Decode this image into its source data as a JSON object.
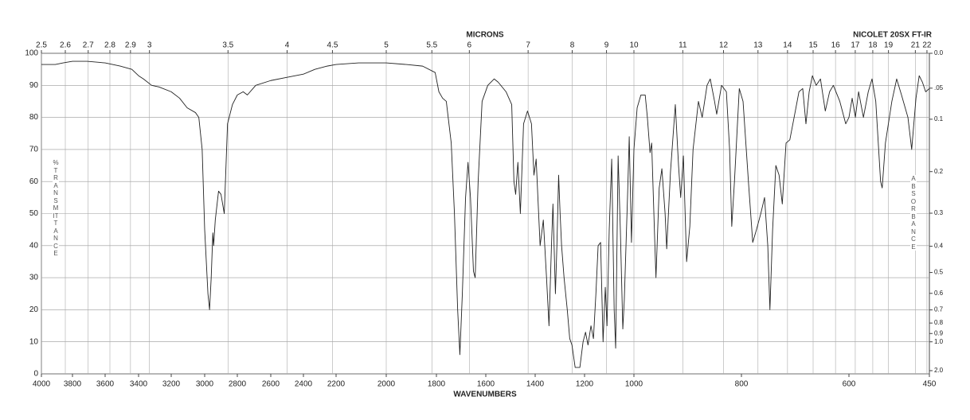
{
  "chart_data": {
    "type": "line",
    "annotation": "NICOLET 20SX FT-IR",
    "x_label": "WAVENUMBERS",
    "x2_label": "MICRONS",
    "y_label": "%TRANSMITTANCE",
    "y2_label": "ABSORBANCE",
    "color": "#222222",
    "grid": true,
    "xlim": [
      4000,
      450
    ],
    "xticks": [
      4000,
      3800,
      3600,
      3400,
      3200,
      3000,
      2800,
      2600,
      2400,
      2200,
      2000,
      1800,
      1600,
      1400,
      1200,
      1000,
      800,
      600,
      450
    ],
    "x2ticks": [
      2.5,
      2.6,
      2.7,
      2.8,
      2.9,
      3,
      3.5,
      4,
      4.5,
      5,
      5.5,
      6,
      7,
      8,
      9,
      10,
      11,
      12,
      13,
      14,
      15,
      16,
      17,
      18,
      19,
      21,
      22
    ],
    "ylim": [
      0,
      100
    ],
    "yticks": [
      0,
      10,
      20,
      30,
      40,
      50,
      60,
      70,
      80,
      90,
      100
    ],
    "y2ticks": [
      {
        "value": 0,
        "label": "0.0"
      },
      {
        "value": 0.05,
        "label": ".05"
      },
      0.1,
      0.2,
      0.3,
      0.4,
      0.5,
      0.6,
      0.7,
      0.8,
      0.9,
      {
        "value": 1,
        "label": "1.0"
      },
      {
        "value": 2,
        "label": "2.0"
      }
    ],
    "x": [
      4000,
      3910,
      3860,
      3800,
      3710,
      3600,
      3510,
      3440,
      3400,
      3370,
      3320,
      3275,
      3200,
      3150,
      3105,
      3055,
      3035,
      3015,
      3000,
      2980,
      2970,
      2960,
      2950,
      2945,
      2935,
      2915,
      2900,
      2880,
      2860,
      2830,
      2800,
      2765,
      2740,
      2690,
      2600,
      2500,
      2450,
      2400,
      2330,
      2255,
      2200,
      2110,
      2000,
      1920,
      1855,
      1805,
      1790,
      1775,
      1760,
      1740,
      1727,
      1714,
      1705,
      1695,
      1682,
      1672,
      1662,
      1650,
      1643,
      1631,
      1615,
      1592,
      1566,
      1550,
      1518,
      1495,
      1486,
      1479,
      1470,
      1460,
      1447,
      1431,
      1415,
      1405,
      1396,
      1386,
      1380,
      1367,
      1354,
      1344,
      1334,
      1328,
      1318,
      1312,
      1305,
      1299,
      1293,
      1283,
      1270,
      1260,
      1251,
      1238,
      1219,
      1206,
      1196,
      1186,
      1174,
      1164,
      1154,
      1145,
      1135,
      1125,
      1116,
      1109,
      1100,
      1090,
      1080,
      1074,
      1064,
      1055,
      1045,
      1039,
      1026,
      1019,
      1010,
      1000,
      994,
      987,
      979,
      975,
      970,
      967,
      961,
      959,
      953,
      948,
      942,
      939,
      932,
      923,
      917,
      913,
      908,
      902,
      896,
      890,
      880,
      873,
      864,
      858,
      850,
      846,
      837,
      828,
      822,
      818,
      813,
      804,
      797,
      787,
      779,
      772,
      764,
      757,
      751,
      747,
      742,
      736,
      730,
      724,
      717,
      710,
      702,
      693,
      686,
      680,
      674,
      668,
      661,
      653,
      644,
      636,
      629,
      617,
      606,
      600,
      594,
      588,
      582,
      573,
      564,
      557,
      550,
      541,
      538,
      532,
      520,
      511,
      502,
      490,
      483,
      475,
      469,
      463,
      457,
      450
    ],
    "values": [
      96.5,
      96.5,
      97,
      97.5,
      97.5,
      97,
      96,
      95,
      93,
      92,
      90,
      89.5,
      88,
      86,
      83,
      81.5,
      80,
      70,
      45,
      25,
      20,
      30,
      44,
      40,
      48,
      57,
      56,
      50,
      78,
      84,
      87,
      88,
      87,
      90,
      91.5,
      92.5,
      93,
      93.5,
      95,
      96,
      96.5,
      97,
      97,
      96.5,
      96,
      94,
      88,
      86,
      85,
      72,
      50,
      20,
      6,
      25,
      55,
      66,
      55,
      32,
      30,
      60,
      85,
      90,
      92,
      91,
      88,
      84,
      60,
      56,
      66,
      50,
      78,
      82,
      78,
      62,
      67,
      50,
      40,
      48,
      30,
      15,
      40,
      53,
      25,
      40,
      62,
      50,
      40,
      30,
      20,
      11,
      9,
      2,
      2,
      10,
      13,
      9,
      15,
      11,
      25,
      40,
      41,
      10,
      27,
      15,
      45,
      67,
      20,
      8,
      68,
      45,
      14,
      23,
      55,
      74,
      41,
      70,
      83,
      87,
      87,
      80,
      69,
      72,
      40,
      30,
      58,
      64,
      50,
      39,
      63,
      84,
      65,
      55,
      68,
      35,
      46,
      70,
      85,
      80,
      90,
      92,
      85,
      81,
      90,
      88,
      70,
      46,
      60,
      89,
      85,
      60,
      41,
      45,
      50,
      55,
      40,
      20,
      45,
      65,
      62,
      53,
      72,
      73,
      80,
      88,
      89,
      78,
      88,
      93,
      90,
      92,
      82,
      88,
      90,
      85,
      78,
      80,
      86,
      80,
      88,
      80,
      88,
      92,
      85,
      60,
      58,
      72,
      85,
      92,
      87,
      80,
      70,
      86,
      93,
      91,
      88,
      89
    ]
  }
}
